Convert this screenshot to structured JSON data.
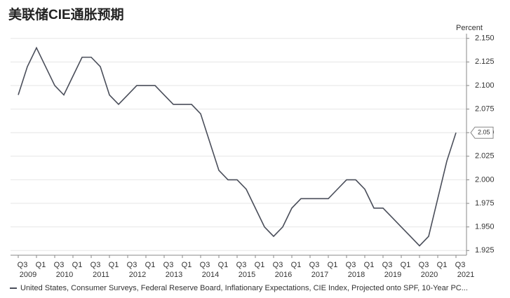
{
  "chart_data": {
    "type": "line",
    "title": "美联储CIE通胀预期",
    "y_axis_label": "Percent",
    "categories": [
      "Q3",
      null,
      "Q1",
      null,
      "Q3",
      null,
      "Q1",
      null,
      "Q3",
      null,
      "Q1",
      null,
      "Q3",
      null,
      "Q1",
      null,
      "Q3",
      null,
      "Q1",
      null,
      "Q3",
      null,
      "Q1",
      null,
      "Q3",
      null,
      "Q1",
      null,
      "Q3",
      null,
      "Q1",
      null,
      "Q3",
      null,
      "Q1",
      null,
      "Q3",
      null,
      "Q1",
      null,
      "Q3",
      null,
      "Q1",
      null,
      "Q3",
      null,
      "Q1",
      null,
      "Q3"
    ],
    "years": [
      "2009",
      "2010",
      "2011",
      "2012",
      "2013",
      "2014",
      "2015",
      "2016",
      "2017",
      "2018",
      "2019",
      "2020",
      "2021"
    ],
    "series": [
      {
        "name": "United States, Consumer Surveys, Federal Reserve Board, Inflationary Expectations, CIE Index, Projected onto SPF, 10-Year PC...",
        "color": "#4a4e5a",
        "values": [
          2.09,
          2.12,
          2.14,
          2.12,
          2.1,
          2.09,
          2.11,
          2.13,
          2.13,
          2.12,
          2.09,
          2.08,
          2.09,
          2.1,
          2.1,
          2.1,
          2.09,
          2.08,
          2.08,
          2.08,
          2.07,
          2.04,
          2.01,
          2.0,
          2.0,
          1.99,
          1.97,
          1.95,
          1.94,
          1.95,
          1.97,
          1.98,
          1.98,
          1.98,
          1.98,
          1.99,
          2.0,
          2.0,
          1.99,
          1.97,
          1.97,
          1.96,
          1.95,
          1.94,
          1.93,
          1.94,
          1.98,
          2.02,
          2.05
        ]
      }
    ],
    "last_value_label": "2.05",
    "ylim": [
      1.92,
      2.155
    ],
    "yticks": [
      {
        "value": 2.15,
        "label": "2.150"
      },
      2.125,
      {
        "value": 2.1,
        "label": "2.100"
      },
      2.075,
      {
        "value": 2.05,
        "label": "2.050"
      },
      2.025,
      {
        "value": 2.0,
        "label": "2.000"
      },
      1.975,
      {
        "value": 1.95,
        "label": "1.950"
      },
      1.925
    ],
    "grid": true
  }
}
